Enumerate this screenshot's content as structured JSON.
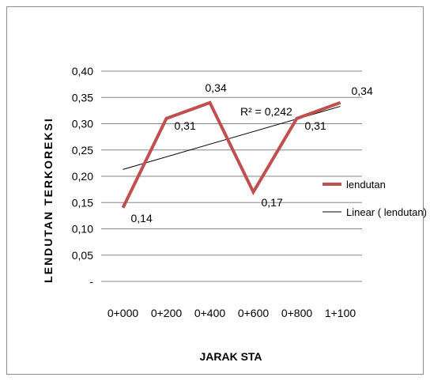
{
  "chart_data": {
    "type": "line",
    "categories": [
      "0+000",
      "0+200",
      "0+400",
      "0+600",
      "0+800",
      "1+100"
    ],
    "series": [
      {
        "name": "lendutan",
        "values": [
          0.14,
          0.31,
          0.34,
          0.17,
          0.31,
          0.34
        ],
        "color": "#c0504d",
        "data_labels": [
          "0,14",
          "0,31",
          "0,34",
          "0,17",
          "0,31",
          "0,34"
        ]
      }
    ],
    "trendline": {
      "name": "Linear ( lendutan)",
      "type": "linear",
      "start": 0.213,
      "end": 0.333,
      "r_squared_label": "R² = 0,242",
      "color": "#000000"
    },
    "xlabel": "JARAK STA",
    "ylabel": "LENDUTAN TERKOREKSI",
    "ylim": [
      0,
      0.4
    ],
    "yticks": [
      0,
      0.05,
      0.1,
      0.15,
      0.2,
      0.25,
      0.3,
      0.35,
      0.4
    ],
    "ytick_labels": [
      "-",
      "0,05",
      "0,10",
      "0,15",
      "0,20",
      "0,25",
      "0,30",
      "0,35",
      "0,40"
    ],
    "grid": true,
    "legend_position": "right"
  }
}
